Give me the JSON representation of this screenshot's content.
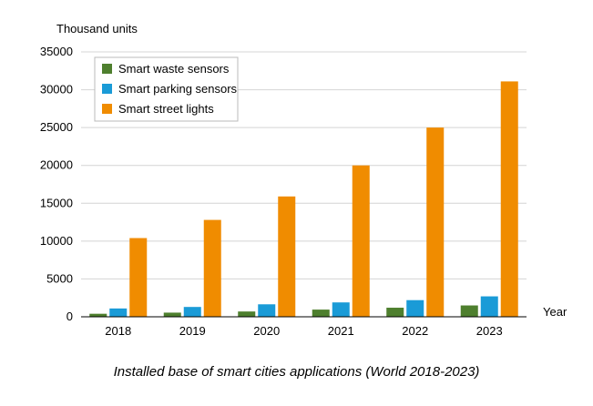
{
  "chart_data": {
    "type": "bar",
    "title": "Installed base of smart cities applications (World 2018-2023)",
    "xlabel": "Year",
    "ylabel": "Thousand units",
    "categories": [
      "2018",
      "2019",
      "2020",
      "2021",
      "2022",
      "2023"
    ],
    "series": [
      {
        "name": "Smart waste sensors",
        "color": "#4e7f2e",
        "values": [
          400,
          550,
          700,
          950,
          1200,
          1500
        ]
      },
      {
        "name": "Smart parking sensors",
        "color": "#1a9bd7",
        "values": [
          1100,
          1300,
          1650,
          1900,
          2200,
          2700
        ]
      },
      {
        "name": "Smart street lights",
        "color": "#f08c00",
        "values": [
          10400,
          12800,
          15900,
          20000,
          25000,
          31100
        ]
      }
    ],
    "ylim": [
      0,
      35000
    ],
    "yticks": [
      0,
      5000,
      10000,
      15000,
      20000,
      25000,
      30000,
      35000
    ],
    "grid": true,
    "legend_position": "top-left"
  }
}
